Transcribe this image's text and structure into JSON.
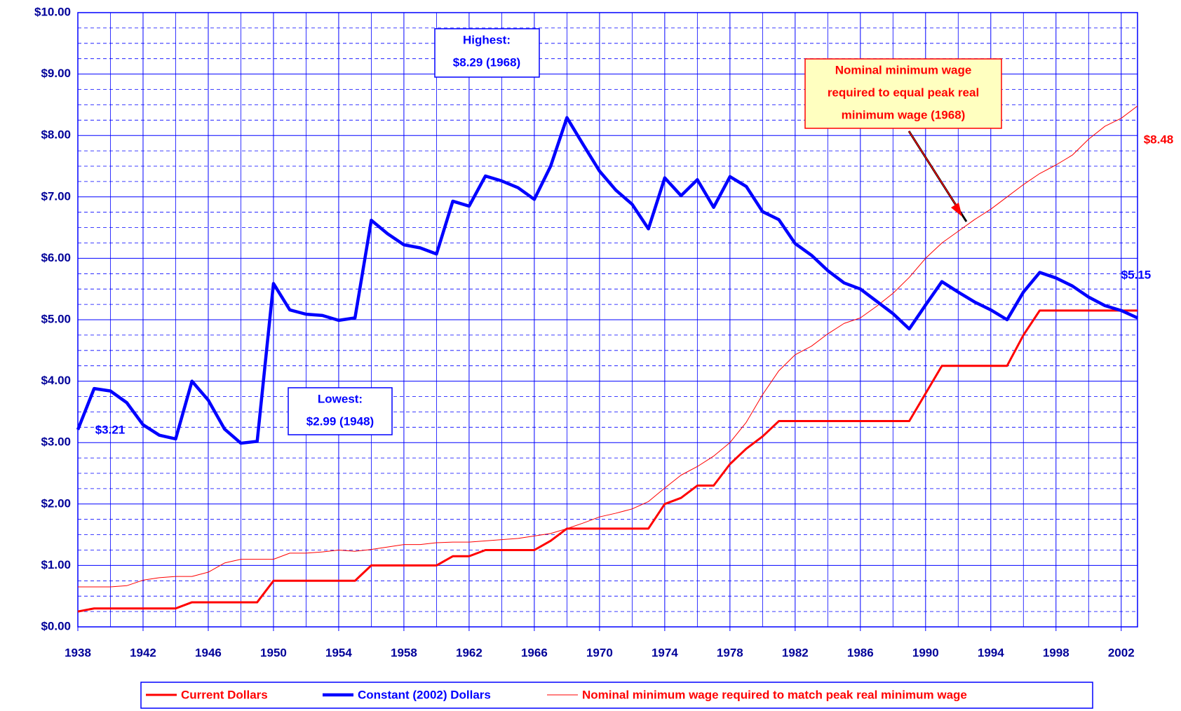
{
  "chart_data": {
    "type": "line",
    "x": [
      1938,
      1939,
      1940,
      1941,
      1942,
      1943,
      1944,
      1945,
      1946,
      1947,
      1948,
      1949,
      1950,
      1951,
      1952,
      1953,
      1954,
      1955,
      1956,
      1957,
      1958,
      1959,
      1960,
      1961,
      1962,
      1963,
      1964,
      1965,
      1966,
      1967,
      1968,
      1969,
      1970,
      1971,
      1972,
      1973,
      1974,
      1975,
      1976,
      1977,
      1978,
      1979,
      1980,
      1981,
      1982,
      1983,
      1984,
      1985,
      1986,
      1987,
      1988,
      1989,
      1990,
      1991,
      1992,
      1993,
      1994,
      1995,
      1996,
      1997,
      1998,
      1999,
      2000,
      2001,
      2002,
      2003
    ],
    "series": [
      {
        "name": "Current Dollars",
        "color": "#ff0000",
        "line_width": 3,
        "values": [
          0.25,
          0.3,
          0.3,
          0.3,
          0.3,
          0.3,
          0.3,
          0.4,
          0.4,
          0.4,
          0.4,
          0.4,
          0.75,
          0.75,
          0.75,
          0.75,
          0.75,
          0.75,
          1.0,
          1.0,
          1.0,
          1.0,
          1.0,
          1.15,
          1.15,
          1.25,
          1.25,
          1.25,
          1.25,
          1.4,
          1.6,
          1.6,
          1.6,
          1.6,
          1.6,
          1.6,
          2.0,
          2.1,
          2.3,
          2.3,
          2.65,
          2.9,
          3.1,
          3.35,
          3.35,
          3.35,
          3.35,
          3.35,
          3.35,
          3.35,
          3.35,
          3.35,
          3.8,
          4.25,
          4.25,
          4.25,
          4.25,
          4.25,
          4.75,
          5.15,
          5.15,
          5.15,
          5.15,
          5.15,
          5.15,
          5.15
        ]
      },
      {
        "name": "Constant (2002) Dollars",
        "color": "#0000ff",
        "line_width": 4.5,
        "values": [
          3.21,
          3.88,
          3.84,
          3.65,
          3.29,
          3.12,
          3.06,
          4.0,
          3.69,
          3.22,
          2.99,
          3.02,
          5.59,
          5.16,
          5.09,
          5.07,
          4.99,
          5.03,
          6.62,
          6.4,
          6.22,
          6.17,
          6.07,
          6.93,
          6.85,
          7.34,
          7.26,
          7.15,
          6.96,
          7.5,
          8.29,
          7.85,
          7.42,
          7.11,
          6.88,
          6.48,
          7.31,
          7.02,
          7.28,
          6.83,
          7.33,
          7.17,
          6.76,
          6.63,
          6.24,
          6.05,
          5.8,
          5.6,
          5.5,
          5.3,
          5.1,
          4.85,
          5.24,
          5.62,
          5.45,
          5.29,
          5.16,
          5.0,
          5.45,
          5.77,
          5.68,
          5.55,
          5.37,
          5.23,
          5.15,
          5.03
        ]
      },
      {
        "name": "Nominal minimum wage required to match peak real minimum wage",
        "color": "#ff0000",
        "line_width": 1,
        "values": [
          0.65,
          0.65,
          0.65,
          0.67,
          0.76,
          0.8,
          0.82,
          0.82,
          0.89,
          1.04,
          1.1,
          1.1,
          1.1,
          1.2,
          1.2,
          1.22,
          1.25,
          1.23,
          1.26,
          1.3,
          1.34,
          1.34,
          1.37,
          1.38,
          1.38,
          1.4,
          1.42,
          1.44,
          1.48,
          1.52,
          1.6,
          1.69,
          1.79,
          1.85,
          1.92,
          2.04,
          2.26,
          2.47,
          2.61,
          2.78,
          3.0,
          3.33,
          3.78,
          4.17,
          4.43,
          4.57,
          4.77,
          4.94,
          5.03,
          5.22,
          5.43,
          5.69,
          6.0,
          6.25,
          6.44,
          6.63,
          6.8,
          7.0,
          7.2,
          7.38,
          7.52,
          7.68,
          7.94,
          8.15,
          8.28,
          8.48
        ]
      }
    ],
    "xlim": [
      1938,
      2003
    ],
    "xticks": [
      1938,
      1942,
      1946,
      1950,
      1954,
      1958,
      1962,
      1966,
      1970,
      1974,
      1978,
      1982,
      1986,
      1990,
      1994,
      1998,
      2002
    ],
    "xgrid": [
      1940,
      1944,
      1948,
      1952,
      1956,
      1960,
      1964,
      1968,
      1972,
      1976,
      1980,
      1984,
      1988,
      1992,
      1996,
      2000
    ],
    "ylim": [
      0,
      10
    ],
    "yticks": [
      {
        "value": 0,
        "label": "$0.00"
      },
      {
        "value": 1,
        "label": "$1.00"
      },
      {
        "value": 2,
        "label": "$2.00"
      },
      {
        "value": 3,
        "label": "$3.00"
      },
      {
        "value": 4,
        "label": "$4.00"
      },
      {
        "value": 5,
        "label": "$5.00"
      },
      {
        "value": 6,
        "label": "$6.00"
      },
      {
        "value": 7,
        "label": "$7.00"
      },
      {
        "value": 8,
        "label": "$8.00"
      },
      {
        "value": 9,
        "label": "$9.00"
      },
      {
        "value": 10,
        "label": "$10.00"
      }
    ],
    "yminor": [
      0.25,
      0.5,
      0.75,
      1.25,
      1.5,
      1.75,
      2.25,
      2.5,
      2.75,
      3.25,
      3.5,
      3.75,
      4.25,
      4.5,
      4.75,
      5.25,
      5.5,
      5.75,
      6.25,
      6.5,
      6.75,
      7.25,
      7.5,
      7.75,
      8.25,
      8.5,
      8.75,
      9.25,
      9.5,
      9.75
    ],
    "grid": true,
    "legend": "bottom",
    "annotations": [
      {
        "lines": [
          "Highest:",
          "$8.29 (1968)"
        ],
        "color": "#0000ff"
      },
      {
        "lines": [
          "Lowest:",
          "$2.99 (1948)"
        ],
        "color": "#0000ff"
      },
      {
        "lines": [
          "$3.21"
        ],
        "color": "#0000ff"
      },
      {
        "lines": [
          "$5.15"
        ],
        "color": "#0000ff"
      },
      {
        "lines": [
          "$8.48"
        ],
        "color": "#ff0000"
      },
      {
        "lines": [
          "Nominal minimum wage",
          "required to equal peak real",
          "minimum wage (1968)"
        ],
        "color": "#ff0000"
      }
    ]
  }
}
